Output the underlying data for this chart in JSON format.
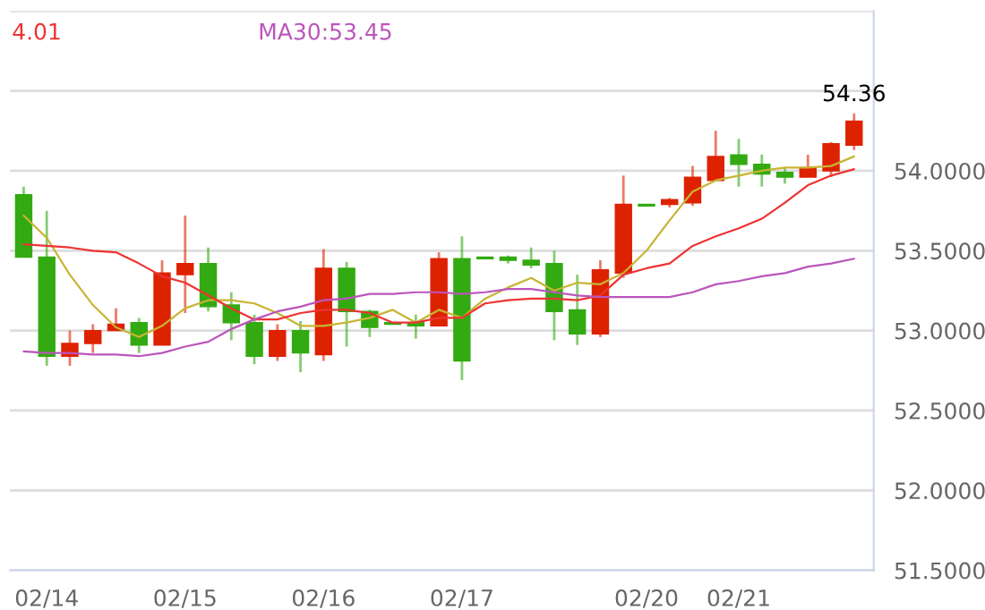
{
  "chart_data": {
    "type": "candlestick",
    "categories": [
      null,
      "02/14",
      null,
      null,
      null,
      null,
      null,
      "02/15",
      null,
      null,
      null,
      null,
      null,
      "02/16",
      null,
      null,
      null,
      null,
      null,
      "02/17",
      null,
      null,
      null,
      null,
      null,
      null,
      null,
      "02/20",
      null,
      null,
      null,
      "02/21",
      null,
      null,
      null,
      null,
      null
    ],
    "ohlc": [
      [
        53.85,
        53.9,
        53.46,
        53.46
      ],
      [
        53.46,
        53.75,
        52.78,
        52.84
      ],
      [
        52.84,
        53.0,
        52.78,
        52.92
      ],
      [
        52.92,
        53.04,
        52.86,
        53.0
      ],
      [
        53.0,
        53.14,
        53.0,
        53.04
      ],
      [
        53.05,
        53.08,
        52.86,
        52.91
      ],
      [
        52.91,
        53.44,
        52.91,
        53.36
      ],
      [
        53.35,
        53.72,
        53.11,
        53.42
      ],
      [
        53.42,
        53.52,
        53.12,
        53.15
      ],
      [
        53.16,
        53.24,
        52.94,
        53.05
      ],
      [
        53.05,
        53.1,
        52.79,
        52.84
      ],
      [
        52.84,
        53.04,
        52.81,
        53.0
      ],
      [
        53.0,
        53.06,
        52.74,
        52.86
      ],
      [
        52.85,
        53.51,
        52.81,
        53.39
      ],
      [
        53.39,
        53.43,
        52.9,
        53.12
      ],
      [
        53.12,
        53.13,
        52.96,
        53.02
      ],
      [
        53.05,
        53.05,
        53.04,
        53.04
      ],
      [
        53.05,
        53.1,
        52.95,
        53.03
      ],
      [
        53.03,
        53.49,
        53.03,
        53.45
      ],
      [
        53.45,
        53.59,
        52.69,
        52.81
      ],
      [
        53.46,
        53.46,
        53.45,
        53.45
      ],
      [
        53.46,
        53.47,
        53.42,
        53.44
      ],
      [
        53.44,
        53.52,
        53.39,
        53.41
      ],
      [
        53.42,
        53.5,
        52.94,
        53.12
      ],
      [
        53.13,
        53.35,
        52.91,
        52.98
      ],
      [
        52.98,
        53.44,
        52.96,
        53.38
      ],
      [
        53.36,
        53.97,
        53.33,
        53.79
      ],
      [
        53.79,
        53.79,
        53.78,
        53.78
      ],
      [
        53.79,
        53.83,
        53.77,
        53.82
      ],
      [
        53.8,
        54.03,
        53.78,
        53.96
      ],
      [
        53.94,
        54.25,
        53.94,
        54.09
      ],
      [
        54.1,
        54.2,
        53.9,
        54.04
      ],
      [
        54.04,
        54.1,
        53.9,
        53.98
      ],
      [
        53.99,
        54.02,
        53.92,
        53.96
      ],
      [
        53.96,
        54.1,
        53.96,
        54.02
      ],
      [
        54.0,
        54.18,
        53.96,
        54.17
      ],
      [
        54.16,
        54.36,
        54.13,
        54.31
      ]
    ],
    "colors": [
      "#33aa11",
      "#33aa11",
      "#dd2200",
      "#dd2200",
      "#dd2200",
      "#33aa11",
      "#dd2200",
      "#dd2200",
      "#33aa11",
      "#33aa11",
      "#33aa11",
      "#dd2200",
      "#33aa11",
      "#dd2200",
      "#33aa11",
      "#33aa11",
      "#33aa11",
      "#33aa11",
      "#dd2200",
      "#33aa11",
      "#33aa11",
      "#33aa11",
      "#33aa11",
      "#33aa11",
      "#33aa11",
      "#dd2200",
      "#dd2200",
      "#33aa11",
      "#dd2200",
      "#dd2200",
      "#dd2200",
      "#33aa11",
      "#33aa11",
      "#33aa11",
      "#dd2200",
      "#dd2200",
      "#dd2200"
    ],
    "series": [
      {
        "type": "line",
        "color": "#c8b434",
        "values": [
          53.72,
          53.58,
          53.35,
          53.16,
          53.02,
          52.96,
          53.03,
          53.14,
          53.19,
          53.19,
          53.17,
          53.11,
          53.03,
          53.03,
          53.05,
          53.08,
          53.13,
          53.05,
          53.13,
          53.08,
          53.2,
          53.27,
          53.33,
          53.25,
          53.3,
          53.29,
          53.36,
          53.5,
          53.69,
          53.87,
          53.94,
          53.97,
          54.0,
          54.02,
          54.02,
          54.03,
          54.09
        ]
      },
      {
        "type": "line",
        "name": "4.01",
        "color": "#ee3333",
        "values": [
          53.54,
          53.53,
          53.52,
          53.5,
          53.49,
          53.42,
          53.34,
          53.3,
          53.22,
          53.14,
          53.07,
          53.07,
          53.11,
          53.13,
          53.13,
          53.11,
          53.05,
          53.05,
          53.08,
          53.08,
          53.17,
          53.19,
          53.2,
          53.2,
          53.19,
          53.22,
          53.35,
          53.39,
          53.42,
          53.53,
          53.59,
          53.64,
          53.7,
          53.8,
          53.91,
          53.97,
          54.01
        ]
      },
      {
        "type": "line",
        "name": "MA30:53.45",
        "color": "#bb55bb",
        "values": [
          52.87,
          52.86,
          52.86,
          52.85,
          52.85,
          52.84,
          52.86,
          52.9,
          52.93,
          53.01,
          53.07,
          53.12,
          53.15,
          53.19,
          53.2,
          53.23,
          53.23,
          53.24,
          53.24,
          53.23,
          53.24,
          53.26,
          53.26,
          53.24,
          53.22,
          53.21,
          53.21,
          53.21,
          53.21,
          53.24,
          53.29,
          53.31,
          53.34,
          53.36,
          53.4,
          53.42,
          53.45
        ]
      }
    ],
    "ylim": [
      51.5,
      55.0
    ],
    "yticks": [
      {
        "value": 51.5,
        "label": "51.5000"
      },
      {
        "value": 52.0,
        "label": "52.0000"
      },
      {
        "value": 52.5,
        "label": "52.5000"
      },
      {
        "value": 53.0,
        "label": "53.0000"
      },
      {
        "value": 53.5,
        "label": "53.5000"
      },
      {
        "value": 54.0,
        "label": "54.0000"
      },
      {
        "value": 54.5,
        "label": null
      },
      {
        "value": 55.0,
        "label": null
      }
    ],
    "grid": "y",
    "legend": "top",
    "annotations": [
      {
        "text": "54.36",
        "y": 54.36
      }
    ]
  }
}
